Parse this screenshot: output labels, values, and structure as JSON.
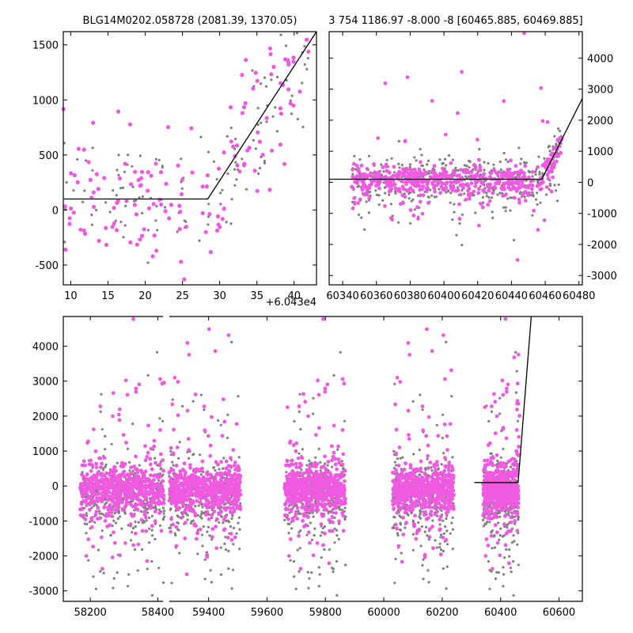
{
  "colors": {
    "magenta": "#f05ae0",
    "gray": "#7f7f7f",
    "model": "#000000"
  },
  "chart_data": [
    {
      "type": "scatter",
      "title": "BLG14M0202.058728 (2081.39, 1370.05)",
      "offset_label": "+6.043e4",
      "xlim": [
        9,
        43
      ],
      "ylim": [
        -680,
        1620
      ],
      "xticks": [
        10,
        15,
        20,
        25,
        30,
        35,
        40
      ],
      "yticks": [
        -500,
        0,
        500,
        1000,
        1500
      ],
      "y_axis_side": "left",
      "grid": false,
      "series": [
        {
          "color": "#f05ae0",
          "marker_size": 2.6,
          "points": "scatter",
          "n": 140,
          "xrange": [
            9,
            43
          ]
        },
        {
          "color": "#7f7f7f",
          "marker_size": 1.6,
          "points": "scatter",
          "n": 120,
          "xrange": [
            9,
            43
          ]
        }
      ],
      "model_line": {
        "x": [
          9,
          28.4,
          43
        ],
        "y": [
          100,
          100,
          1620
        ]
      }
    },
    {
      "type": "scatter",
      "title": "3 754 1186.97 -8.000 -8 [60465.885, 60469.885]",
      "xlim": [
        60332,
        60482
      ],
      "ylim": [
        -3300,
        4850
      ],
      "xticks": [
        60340,
        60360,
        60380,
        60400,
        60420,
        60440,
        60460,
        60480
      ],
      "yticks": [
        -3000,
        -2000,
        -1000,
        0,
        1000,
        2000,
        3000,
        4000
      ],
      "y_axis_side": "right",
      "grid": false,
      "series": [
        {
          "color": "#f05ae0",
          "marker_size": 2.4,
          "n": 520
        },
        {
          "color": "#7f7f7f",
          "marker_size": 1.6,
          "n": 420
        }
      ],
      "model_line": {
        "x": [
          60332,
          60458,
          60482
        ],
        "y": [
          100,
          100,
          2700
        ]
      }
    },
    {
      "type": "scatter",
      "xlim": [
        58120,
        60680
      ],
      "ylim": [
        -3300,
        4850
      ],
      "broken_axis_gap": [
        58420,
        59260
      ],
      "xticks": [
        58200,
        58400,
        59400,
        59600,
        59800,
        60000,
        60200,
        60400,
        60600
      ],
      "yticks": [
        -3000,
        -2000,
        -1000,
        0,
        1000,
        2000,
        3000,
        4000
      ],
      "y_axis_side": "left",
      "grid": false,
      "seasons": [
        {
          "x_start": 58170,
          "x_end": 58420
        },
        {
          "x_start": 59265,
          "x_end": 59510
        },
        {
          "x_start": 59660,
          "x_end": 59870
        },
        {
          "x_start": 60030,
          "x_end": 60240
        },
        {
          "x_start": 60340,
          "x_end": 60462
        }
      ],
      "model_line": {
        "x": [
          60310,
          60460,
          60505
        ],
        "y": [
          100,
          100,
          4850
        ]
      }
    }
  ]
}
